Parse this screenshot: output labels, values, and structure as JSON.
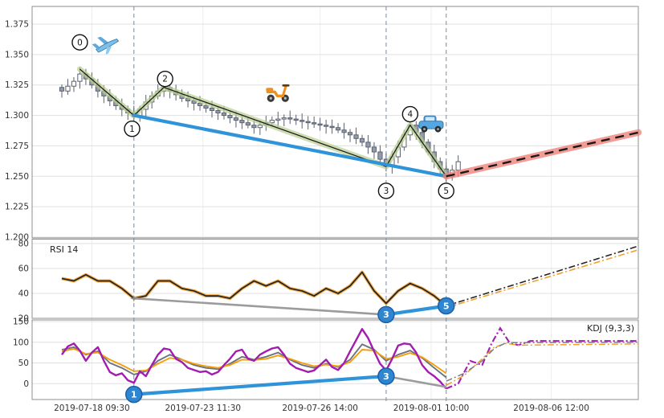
{
  "chart_data": {
    "type": "candlestick",
    "title": "",
    "description": "Forex candlestick chart with numbered zigzag waves 0-5, blue trendlines, forecast projection, RSI and KDJ indicator sub-panels",
    "x_axis": {
      "tick_labels": [
        {
          "label": "2019-07-18 09:30",
          "i": 5
        },
        {
          "label": "2019-07-23 11:30",
          "i": 23.5
        },
        {
          "label": "2019-07-26 14:00",
          "i": 43
        },
        {
          "label": "2019-08-01 10:00",
          "i": 61.5
        },
        {
          "label": "2019-08-06 12:00",
          "i": 81.5
        }
      ]
    },
    "vertical_dashed_lines_i": [
      12,
      54,
      64
    ],
    "price_panel": {
      "y_ticks": [
        1.375,
        1.35,
        1.325,
        1.3,
        1.275,
        1.25,
        1.225,
        1.2
      ],
      "candle_closes": [
        1.32,
        1.324,
        1.328,
        1.334,
        1.33,
        1.325,
        1.32,
        1.316,
        1.312,
        1.308,
        1.305,
        1.302,
        1.299,
        1.305,
        1.311,
        1.316,
        1.32,
        1.323,
        1.32,
        1.317,
        1.314,
        1.312,
        1.31,
        1.308,
        1.306,
        1.304,
        1.302,
        1.3,
        1.298,
        1.296,
        1.294,
        1.292,
        1.29,
        1.292,
        1.294,
        1.296,
        1.297,
        1.298,
        1.297,
        1.296,
        1.295,
        1.294,
        1.293,
        1.292,
        1.291,
        1.29,
        1.288,
        1.286,
        1.284,
        1.281,
        1.278,
        1.274,
        1.27,
        1.264,
        1.258,
        1.266,
        1.274,
        1.284,
        1.292,
        1.286,
        1.278,
        1.27,
        1.262,
        1.256,
        1.25,
        1.255,
        1.262
      ],
      "zigzag_points": [
        [
          3,
          1.338
        ],
        [
          12,
          1.3
        ],
        [
          17,
          1.323
        ],
        [
          54,
          1.258
        ],
        [
          58,
          1.292
        ],
        [
          64,
          1.25
        ]
      ],
      "wave_markers": [
        {
          "label": "0",
          "i": 3,
          "price": 1.36
        },
        {
          "label": "1",
          "i": 11.7,
          "price": 1.289
        },
        {
          "label": "2",
          "i": 17.2,
          "price": 1.33
        },
        {
          "label": "3",
          "i": 54,
          "price": 1.238
        },
        {
          "label": "4",
          "i": 58,
          "price": 1.301
        },
        {
          "label": "5",
          "i": 64,
          "price": 1.238
        }
      ],
      "trendline": {
        "points": [
          [
            12,
            1.3
          ],
          [
            64,
            1.25
          ]
        ]
      },
      "forecast": {
        "points": [
          [
            64,
            1.25
          ],
          [
            96,
            1.286
          ]
        ]
      },
      "icons": [
        {
          "name": "airplane-icon",
          "i": 7.5,
          "price": 1.357
        },
        {
          "name": "scooter-icon",
          "i": 36,
          "price": 1.32
        },
        {
          "name": "car-icon",
          "i": 61.5,
          "price": 1.293
        }
      ]
    },
    "rsi_panel": {
      "label": "RSI 14",
      "y_ticks": [
        80,
        60,
        40,
        20
      ],
      "line_step": 2,
      "line_values": [
        52,
        50,
        55,
        50,
        50,
        44,
        36,
        38,
        50,
        50,
        44,
        42,
        38,
        38,
        36,
        44,
        50,
        46,
        50,
        44,
        42,
        38,
        44,
        40,
        46,
        57,
        42,
        32,
        42,
        48,
        44,
        38,
        30
      ],
      "gray_line": [
        [
          12,
          36
        ],
        [
          54,
          23
        ]
      ],
      "blue_line": [
        [
          54,
          23
        ],
        [
          64,
          30
        ]
      ],
      "star_marker": {
        "i": 12,
        "value": 36
      },
      "markers": [
        {
          "label": "3",
          "i": 54,
          "value": 23
        },
        {
          "label": "5",
          "i": 64,
          "value": 30
        }
      ],
      "projections": [
        {
          "color": "#222222",
          "points": [
            [
              64,
              30
            ],
            [
              96,
              78
            ]
          ]
        },
        {
          "color": "#f0a030",
          "points": [
            [
              64,
              28.5
            ],
            [
              96,
              75
            ]
          ]
        }
      ]
    },
    "kdj_panel": {
      "label": "KDJ (9,3,3)",
      "y_ticks": [
        150,
        100,
        50,
        0
      ],
      "j_values": [
        70,
        90,
        97,
        80,
        55,
        75,
        88,
        55,
        28,
        20,
        25,
        8,
        2,
        30,
        18,
        45,
        70,
        85,
        82,
        60,
        52,
        38,
        33,
        28,
        30,
        22,
        28,
        45,
        60,
        78,
        82,
        60,
        55,
        70,
        78,
        85,
        88,
        70,
        48,
        38,
        33,
        28,
        32,
        45,
        58,
        40,
        33,
        50,
        78,
        105,
        132,
        110,
        78,
        48,
        32,
        60,
        92,
        97,
        95,
        75,
        45,
        28,
        18,
        5,
        -12
      ],
      "kd_step": 2,
      "k_values": [
        82,
        88,
        70,
        78,
        50,
        38,
        22,
        30,
        55,
        70,
        58,
        45,
        38,
        35,
        48,
        65,
        58,
        65,
        75,
        58,
        45,
        38,
        48,
        40,
        58,
        95,
        82,
        55,
        70,
        80,
        62,
        38,
        15
      ],
      "d_values": [
        78,
        84,
        72,
        75,
        58,
        45,
        30,
        32,
        48,
        62,
        58,
        48,
        42,
        38,
        45,
        58,
        57,
        60,
        68,
        60,
        50,
        42,
        46,
        42,
        52,
        82,
        80,
        60,
        65,
        74,
        64,
        45,
        25
      ],
      "blue_line": [
        [
          12,
          -26
        ],
        [
          54,
          18
        ]
      ],
      "gray_line": [
        [
          54,
          18
        ],
        [
          64,
          -8
        ]
      ],
      "markers": [
        {
          "label": "1",
          "i": 12,
          "value": -26
        },
        {
          "label": "3",
          "i": 54,
          "value": 18
        }
      ],
      "projections": [
        {
          "color": "#a21caf",
          "points": [
            [
              64,
              -12
            ],
            [
              66,
              0
            ],
            [
              68,
              55
            ],
            [
              70,
              45
            ],
            [
              71.5,
              95
            ],
            [
              73,
              134
            ],
            [
              74.5,
              100
            ],
            [
              76,
              93
            ],
            [
              78,
              103
            ],
            [
              96,
              103
            ]
          ]
        },
        {
          "color": "#f0a030",
          "points": [
            [
              64,
              -4
            ],
            [
              67,
              20
            ],
            [
              70,
              60
            ],
            [
              72,
              88
            ],
            [
              74,
              97
            ],
            [
              76,
              93
            ],
            [
              96,
              96
            ]
          ]
        },
        {
          "color": "#7a7f87",
          "points": [
            [
              64,
              6
            ],
            [
              67,
              25
            ],
            [
              70,
              55
            ],
            [
              72,
              85
            ],
            [
              74,
              99
            ],
            [
              96,
              100
            ]
          ]
        }
      ]
    },
    "colors": {
      "candle_up_fill": "#ffffff",
      "candle_down_fill": "#949cac",
      "candle_border": "#5b6270",
      "zigzag": "#1d1d1d",
      "zigzag_glow": "#b9cf90",
      "trend_blue": "#2e93d9",
      "forecast_glow": "#ef8078",
      "forecast_dash": "#1a1a1a",
      "rsi_line": "#222222",
      "rsi_glow": "#f0a030",
      "gray_line": "#9b9b9b",
      "kdj_k": "#6b7280",
      "kdj_d": "#f59e0b",
      "kdj_j": "#a21caf",
      "marker_blue_fill": "#2e86d0",
      "marker_blue_border": "#1f5fa6",
      "grid": "#e0e0e0",
      "panel_border": "#8f8f8f",
      "vline": "#7d8da1",
      "axis_text": "#333333"
    }
  }
}
